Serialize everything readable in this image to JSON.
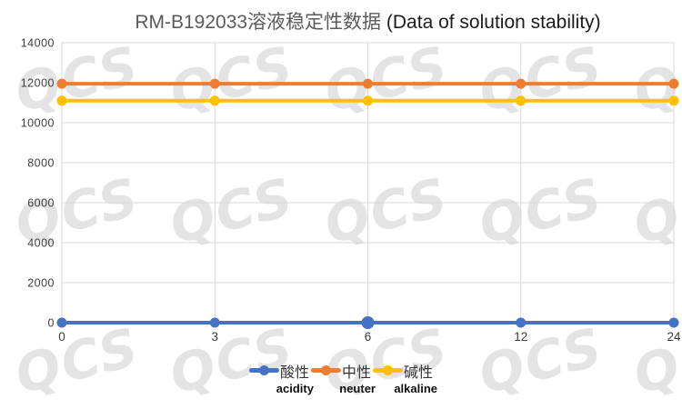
{
  "title": {
    "main": "RM-B192033溶液稳定性数据",
    "suffix": " (Data of solution stability)"
  },
  "watermark": {
    "text": "QCS"
  },
  "colors": {
    "gridline": "#d9d9d9",
    "axis_label": "#3d3d3d",
    "title_cn": "#5b5b5b",
    "title_en": "#1c1c1c",
    "series_blue": "#4472C4",
    "series_orange": "#ED7D31",
    "series_yellow": "#FFC000"
  },
  "chart_data": {
    "type": "line",
    "title": "RM-B192033溶液稳定性数据 (Data of solution stability)",
    "x_categories": [
      "0",
      "3",
      "6",
      "12",
      "24"
    ],
    "xlabel": "",
    "ylabel": "",
    "ylim": [
      0,
      14000
    ],
    "ytick_interval": 2000,
    "yticks": [
      0,
      2000,
      4000,
      6000,
      8000,
      10000,
      12000,
      14000
    ],
    "grid": true,
    "legend_position": "bottom",
    "series": [
      {
        "name_cn": "酸性",
        "name_en": "acidity",
        "color": "#4472C4",
        "values": [
          0,
          0,
          0,
          0,
          0
        ]
      },
      {
        "name_cn": "中性",
        "name_en": "neuter",
        "color": "#ED7D31",
        "values": [
          11950,
          11950,
          11950,
          11950,
          11950
        ]
      },
      {
        "name_cn": "碱性",
        "name_en": "alkaline",
        "color": "#FFC000",
        "values": [
          11100,
          11100,
          11100,
          11100,
          11100
        ]
      }
    ],
    "highlight_point": {
      "series_index": 0,
      "point_index": 2
    }
  }
}
